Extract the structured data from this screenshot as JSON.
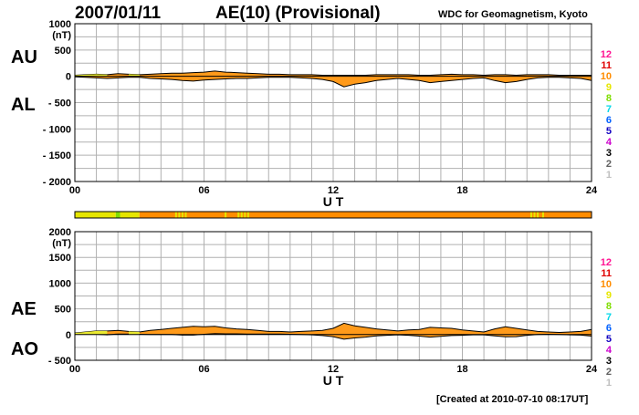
{
  "header": {
    "date": "2007/01/11",
    "title": "AE(10) (Provisional)",
    "source": "WDC for Geomagnetism, Kyoto"
  },
  "footer": {
    "created": "[Created at 2010-07-10 08:17UT]"
  },
  "activity_scale": {
    "levels": [
      "12",
      "11",
      "10",
      "9",
      "8",
      "7",
      "6",
      "5",
      "4",
      "3",
      "2",
      "1"
    ],
    "colors": [
      "#ff1493",
      "#e00000",
      "#ff8c00",
      "#e6e600",
      "#7fdd00",
      "#00d8e8",
      "#0060ff",
      "#1000c0",
      "#cc00cc",
      "#000000",
      "#606060",
      "#c0c0c0"
    ]
  },
  "activity_bar": {
    "hours": [
      0,
      1,
      2,
      3,
      4,
      5,
      6,
      7,
      8,
      9,
      10,
      11,
      12,
      13,
      14,
      15,
      16,
      17,
      18,
      19,
      20,
      21,
      22,
      23,
      24
    ],
    "segments": [
      {
        "from": 0.0,
        "to": 1.9,
        "level": "9"
      },
      {
        "from": 1.9,
        "to": 2.1,
        "level": "8"
      },
      {
        "from": 2.1,
        "to": 3.0,
        "level": "9"
      },
      {
        "from": 3.0,
        "to": 24.0,
        "level": "10"
      }
    ],
    "flecks_hours": [
      4.7,
      4.85,
      5.0,
      5.15,
      7.0,
      7.6,
      7.75,
      7.9,
      8.05,
      21.2,
      21.35,
      21.5,
      21.75
    ]
  },
  "chart_data": [
    {
      "type": "area",
      "panel": "AU/AL",
      "labels": {
        "upper": "AU",
        "lower": "AL"
      },
      "unit": "(nT)",
      "xlabel": "U T",
      "x_ticks": [
        0,
        6,
        12,
        18,
        24
      ],
      "x_tick_labels": [
        "00",
        "06",
        "12",
        "18",
        "24"
      ],
      "ylim": [
        -2000,
        1000
      ],
      "y_ticks": [
        1000,
        500,
        0,
        -500,
        -1000,
        -1500,
        -2000
      ],
      "y_tick_labels": [
        "1000",
        "500",
        "0",
        "- 500",
        "- 1000",
        "- 1500",
        "- 2000"
      ],
      "grid": true,
      "x": [
        0,
        0.5,
        1,
        1.5,
        2,
        2.5,
        3,
        3.5,
        4,
        4.5,
        5,
        5.5,
        6,
        6.5,
        7,
        7.5,
        8,
        8.5,
        9,
        9.5,
        10,
        10.5,
        11,
        11.5,
        12,
        12.5,
        13,
        13.5,
        14,
        14.5,
        15,
        15.5,
        16,
        16.5,
        17,
        17.5,
        18,
        18.5,
        19,
        19.5,
        20,
        20.5,
        21,
        21.5,
        22,
        22.5,
        23,
        23.5,
        24
      ],
      "series": [
        {
          "values": [
            20,
            30,
            40,
            30,
            50,
            40,
            30,
            40,
            50,
            60,
            60,
            70,
            80,
            100,
            80,
            70,
            60,
            50,
            40,
            40,
            30,
            30,
            30,
            20,
            20,
            20,
            20,
            20,
            30,
            30,
            30,
            30,
            20,
            20,
            30,
            40,
            30,
            30,
            20,
            30,
            30,
            20,
            30,
            30,
            30,
            20,
            20,
            20,
            20
          ]
        },
        {
          "values": [
            -10,
            -20,
            -30,
            -40,
            -30,
            -20,
            -20,
            -40,
            -50,
            -60,
            -80,
            -90,
            -70,
            -60,
            -50,
            -40,
            -40,
            -30,
            -20,
            -20,
            -20,
            -30,
            -40,
            -60,
            -100,
            -200,
            -150,
            -120,
            -80,
            -60,
            -40,
            -60,
            -80,
            -120,
            -100,
            -80,
            -60,
            -40,
            -30,
            -80,
            -120,
            -100,
            -60,
            -30,
            -20,
            -20,
            -30,
            -40,
            -80
          ]
        }
      ]
    },
    {
      "type": "area",
      "panel": "AE/AO",
      "labels": {
        "upper": "AE",
        "lower": "AO"
      },
      "unit": "(nT)",
      "xlabel": "U T",
      "x_ticks": [
        0,
        6,
        12,
        18,
        24
      ],
      "x_tick_labels": [
        "00",
        "06",
        "12",
        "18",
        "24"
      ],
      "ylim": [
        -500,
        2000
      ],
      "y_ticks": [
        2000,
        1500,
        1000,
        500,
        0,
        -500
      ],
      "y_tick_labels": [
        "2000",
        "1500",
        "1000",
        "500",
        "0",
        "- 500"
      ],
      "grid": true,
      "x": [
        0,
        0.5,
        1,
        1.5,
        2,
        2.5,
        3,
        3.5,
        4,
        4.5,
        5,
        5.5,
        6,
        6.5,
        7,
        7.5,
        8,
        8.5,
        9,
        9.5,
        10,
        10.5,
        11,
        11.5,
        12,
        12.5,
        13,
        13.5,
        14,
        14.5,
        15,
        15.5,
        16,
        16.5,
        17,
        17.5,
        18,
        18.5,
        19,
        19.5,
        20,
        20.5,
        21,
        21.5,
        22,
        22.5,
        23,
        23.5,
        24
      ],
      "series": [
        {
          "values": [
            30,
            50,
            70,
            70,
            80,
            60,
            50,
            80,
            100,
            120,
            140,
            160,
            150,
            160,
            130,
            110,
            100,
            80,
            60,
            60,
            50,
            60,
            70,
            80,
            120,
            220,
            170,
            140,
            110,
            90,
            70,
            90,
            100,
            140,
            130,
            120,
            90,
            70,
            50,
            110,
            150,
            120,
            90,
            60,
            50,
            40,
            50,
            60,
            100
          ]
        },
        {
          "values": [
            5,
            5,
            5,
            -5,
            10,
            10,
            5,
            0,
            0,
            0,
            -10,
            -10,
            5,
            20,
            15,
            15,
            10,
            10,
            10,
            10,
            5,
            0,
            -5,
            -20,
            -40,
            -90,
            -65,
            -50,
            -25,
            -15,
            -5,
            -15,
            -30,
            -50,
            -35,
            -20,
            -15,
            -5,
            -5,
            -25,
            -45,
            -40,
            -15,
            0,
            5,
            0,
            -5,
            -10,
            -30
          ]
        }
      ]
    }
  ]
}
